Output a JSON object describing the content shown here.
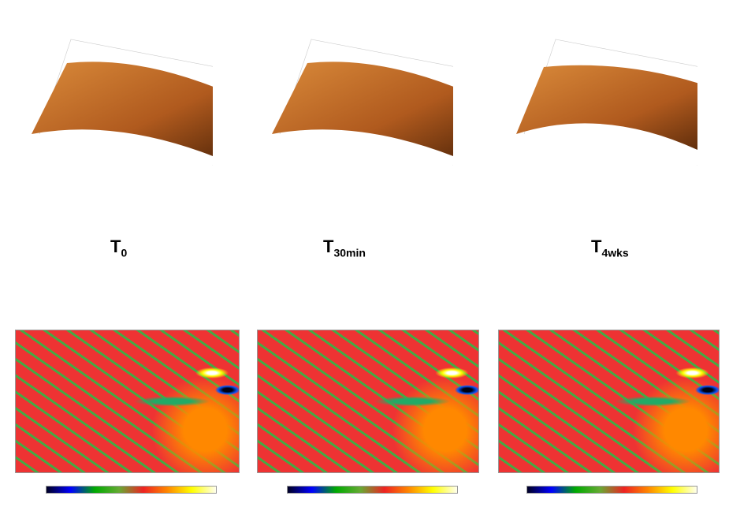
{
  "panels": [
    {
      "label_main": "T",
      "label_sub": "0"
    },
    {
      "label_main": "T",
      "label_sub": "30min"
    },
    {
      "label_main": "T",
      "label_sub": "4wks"
    }
  ],
  "colors": {
    "surface": "#b5651d",
    "colormap": [
      "#000020",
      "#0000ff",
      "#00a000",
      "#e02020",
      "#ff8000",
      "#ffff00",
      "#ffffe0"
    ]
  }
}
